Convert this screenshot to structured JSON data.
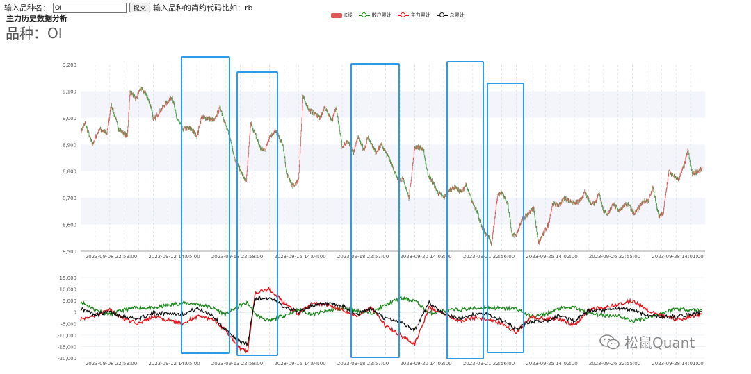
{
  "form": {
    "label": "输入品种名：",
    "input_value": "OI",
    "submit_label": "提交",
    "hint": "输入品种的简约代码比如：rb"
  },
  "header": {
    "section_title": "主力历史数据分析",
    "variety": "品种：OI"
  },
  "legend": [
    {
      "name": "K线",
      "color": "#e05a5a"
    },
    {
      "name": "散户累计",
      "color": "#1a8a1a"
    },
    {
      "name": "主力累计",
      "color": "#e8141a"
    },
    {
      "name": "总累计",
      "color": "#111111"
    }
  ],
  "watermark": "松鼠Quant",
  "chart_data": [
    {
      "type": "candlestick",
      "title": "",
      "y_ticks": [
        "9,200",
        "9,100",
        "9,000",
        "8,900",
        "8,800",
        "8,700",
        "8,600",
        "8,500"
      ],
      "ylim": [
        8500,
        9200
      ],
      "x_tick_labels": [
        "2023-09-08 22:59:00",
        "2023-09-12 14:05:00",
        "2023-09-13 22:58:00",
        "2023-09-15 14:04:00",
        "2023-09-18 22:57:00",
        "2023-09-20 14:03:00",
        "2023-09-21 22:56:00",
        "2023-09-25 14:02:00",
        "2023-09-26 22:55:00",
        "2023-09-28 14:01:00"
      ],
      "close_path": [
        [
          0,
          8950
        ],
        [
          0.3,
          8980
        ],
        [
          0.8,
          8900
        ],
        [
          1.3,
          8960
        ],
        [
          1.8,
          8940
        ],
        [
          2.1,
          9050
        ],
        [
          2.6,
          8960
        ],
        [
          3.2,
          8930
        ],
        [
          3.4,
          9100
        ],
        [
          3.8,
          9070
        ],
        [
          4.1,
          9110
        ],
        [
          4.5,
          9090
        ],
        [
          4.9,
          9030
        ],
        [
          5.0,
          8990
        ],
        [
          5.4,
          9020
        ],
        [
          5.8,
          9050
        ],
        [
          6.3,
          9080
        ],
        [
          6.6,
          9000
        ],
        [
          7.0,
          8960
        ],
        [
          7.6,
          8960
        ],
        [
          8.0,
          8930
        ],
        [
          8.3,
          9000
        ],
        [
          8.7,
          9000
        ],
        [
          9.2,
          8990
        ],
        [
          9.6,
          9040
        ],
        [
          10.0,
          8970
        ],
        [
          10.3,
          8920
        ],
        [
          10.6,
          8850
        ],
        [
          11.0,
          8800
        ],
        [
          11.4,
          8760
        ],
        [
          11.7,
          8980
        ],
        [
          12.0,
          8940
        ],
        [
          12.4,
          8880
        ],
        [
          12.7,
          8880
        ],
        [
          13.0,
          8930
        ],
        [
          13.4,
          8950
        ],
        [
          13.9,
          8900
        ],
        [
          14.2,
          8790
        ],
        [
          14.6,
          8740
        ],
        [
          15.0,
          8770
        ],
        [
          15.3,
          9080
        ],
        [
          15.7,
          9030
        ],
        [
          16.0,
          9020
        ],
        [
          16.5,
          9000
        ],
        [
          16.8,
          9040
        ],
        [
          17.3,
          8990
        ],
        [
          17.6,
          9040
        ],
        [
          18.0,
          8890
        ],
        [
          18.4,
          8910
        ],
        [
          18.8,
          8870
        ],
        [
          19.1,
          8930
        ],
        [
          19.5,
          8880
        ],
        [
          19.8,
          8930
        ],
        [
          20.3,
          8870
        ],
        [
          20.7,
          8900
        ],
        [
          21.0,
          8870
        ],
        [
          21.4,
          8830
        ],
        [
          21.8,
          8770
        ],
        [
          22.2,
          8770
        ],
        [
          22.6,
          8700
        ],
        [
          23.0,
          8890
        ],
        [
          23.3,
          8890
        ],
        [
          23.6,
          8880
        ],
        [
          23.9,
          8790
        ],
        [
          24.2,
          8760
        ],
        [
          24.6,
          8720
        ],
        [
          25.0,
          8700
        ],
        [
          25.4,
          8730
        ],
        [
          25.8,
          8740
        ],
        [
          26.2,
          8720
        ],
        [
          26.5,
          8750
        ],
        [
          27.0,
          8680
        ],
        [
          27.3,
          8650
        ],
        [
          27.6,
          8590
        ],
        [
          28.0,
          8560
        ],
        [
          28.3,
          8530
        ],
        [
          28.7,
          8710
        ],
        [
          29.0,
          8720
        ],
        [
          29.4,
          8680
        ],
        [
          29.7,
          8560
        ],
        [
          30.0,
          8560
        ],
        [
          30.4,
          8620
        ],
        [
          30.8,
          8640
        ],
        [
          31.2,
          8660
        ],
        [
          31.5,
          8530
        ],
        [
          31.8,
          8560
        ],
        [
          32.2,
          8600
        ],
        [
          32.5,
          8680
        ],
        [
          32.9,
          8670
        ],
        [
          33.3,
          8700
        ],
        [
          33.6,
          8690
        ],
        [
          34.0,
          8680
        ],
        [
          34.4,
          8690
        ],
        [
          34.7,
          8720
        ],
        [
          35.1,
          8680
        ],
        [
          35.4,
          8680
        ],
        [
          35.7,
          8720
        ],
        [
          36.0,
          8650
        ],
        [
          36.3,
          8640
        ],
        [
          36.7,
          8680
        ],
        [
          37.0,
          8650
        ],
        [
          37.4,
          8670
        ],
        [
          37.7,
          8680
        ],
        [
          38.1,
          8640
        ],
        [
          38.4,
          8660
        ],
        [
          38.8,
          8690
        ],
        [
          39.1,
          8690
        ],
        [
          39.4,
          8740
        ],
        [
          39.8,
          8630
        ],
        [
          40.1,
          8640
        ],
        [
          40.5,
          8800
        ],
        [
          40.8,
          8780
        ],
        [
          41.2,
          8770
        ],
        [
          41.6,
          8830
        ],
        [
          41.8,
          8880
        ],
        [
          42.1,
          8790
        ],
        [
          42.5,
          8800
        ],
        [
          42.8,
          8810
        ]
      ]
    },
    {
      "type": "line",
      "title": "",
      "y_ticks": [
        "15,000",
        "10,000",
        "5,000",
        "0",
        "-5,000",
        "-10,000",
        "-15,000",
        "-20,000"
      ],
      "ylim": [
        -20000,
        15000
      ],
      "x_tick_labels": [
        "2023-09-08 22:59:00",
        "2023-09-12 14:05:00",
        "2023-09-13 22:58:00",
        "2023-09-15 14:04:00",
        "2023-09-18 22:57:00",
        "2023-09-20 14:03:00",
        "2023-09-21 22:56:00",
        "2023-09-25 14:02:00",
        "2023-09-26 22:55:00",
        "2023-09-28 14:01:00"
      ],
      "series": [
        {
          "name": "散户累计",
          "color": "#1a8a1a",
          "values": [
            [
              0,
              4500
            ],
            [
              1,
              1000
            ],
            [
              2,
              -1000
            ],
            [
              3,
              1000
            ],
            [
              4,
              2000
            ],
            [
              5,
              1500
            ],
            [
              6,
              3000
            ],
            [
              7,
              4000
            ],
            [
              8,
              3500
            ],
            [
              9,
              2000
            ],
            [
              10,
              -1000
            ],
            [
              11,
              3000
            ],
            [
              11.5,
              4000
            ],
            [
              12,
              -1000
            ],
            [
              13,
              -4000
            ],
            [
              14,
              -1500
            ],
            [
              15,
              1000
            ],
            [
              16,
              -1000
            ],
            [
              17,
              500
            ],
            [
              18,
              1500
            ],
            [
              19,
              500
            ],
            [
              20,
              -500
            ],
            [
              21,
              3000
            ],
            [
              22,
              6000
            ],
            [
              23,
              5000
            ],
            [
              24,
              -500
            ],
            [
              25,
              500
            ],
            [
              26,
              1000
            ],
            [
              27,
              1500
            ],
            [
              28,
              2000
            ],
            [
              29,
              1500
            ],
            [
              30,
              1500
            ],
            [
              31,
              -2000
            ],
            [
              32,
              -1000
            ],
            [
              33,
              1500
            ],
            [
              34,
              2000
            ],
            [
              35,
              -500
            ],
            [
              36,
              -1500
            ],
            [
              37,
              -1500
            ],
            [
              38,
              -4000
            ],
            [
              39,
              -2500
            ],
            [
              40,
              -500
            ],
            [
              41,
              1500
            ],
            [
              42,
              1000
            ],
            [
              42.8,
              800
            ]
          ]
        },
        {
          "name": "主力累计",
          "color": "#e8141a",
          "values": [
            [
              0,
              -3000
            ],
            [
              1,
              -1500
            ],
            [
              2,
              1000
            ],
            [
              3,
              -3000
            ],
            [
              4,
              -5000
            ],
            [
              5,
              -2000
            ],
            [
              6,
              -3500
            ],
            [
              7,
              -5000
            ],
            [
              8,
              -2000
            ],
            [
              9,
              -3000
            ],
            [
              10,
              -8000
            ],
            [
              11,
              -16000
            ],
            [
              11.5,
              -17000
            ],
            [
              12,
              8000
            ],
            [
              13,
              10000
            ],
            [
              14,
              4000
            ],
            [
              15,
              -1000
            ],
            [
              16,
              4000
            ],
            [
              17,
              3000
            ],
            [
              18,
              1000
            ],
            [
              19,
              -1500
            ],
            [
              20,
              2000
            ],
            [
              21,
              -6000
            ],
            [
              22,
              -10000
            ],
            [
              23,
              -14000
            ],
            [
              24,
              2000
            ],
            [
              25,
              -1000
            ],
            [
              26,
              -4000
            ],
            [
              27,
              -2500
            ],
            [
              28,
              -3000
            ],
            [
              29,
              -5000
            ],
            [
              30,
              -9000
            ],
            [
              31,
              -2000
            ],
            [
              32,
              -3000
            ],
            [
              33,
              -3000
            ],
            [
              34,
              -6000
            ],
            [
              35,
              1000
            ],
            [
              36,
              2000
            ],
            [
              37,
              3000
            ],
            [
              38,
              5000
            ],
            [
              39,
              1000
            ],
            [
              40,
              -1500
            ],
            [
              41,
              -3500
            ],
            [
              42,
              -2000
            ],
            [
              42.8,
              -1000
            ]
          ]
        },
        {
          "name": "总累计",
          "color": "#111111",
          "values": [
            [
              0,
              1500
            ],
            [
              1,
              -1000
            ],
            [
              2,
              0
            ],
            [
              3,
              -2000
            ],
            [
              4,
              -3000
            ],
            [
              5,
              -500
            ],
            [
              6,
              -500
            ],
            [
              7,
              -1000
            ],
            [
              8,
              1500
            ],
            [
              9,
              -1000
            ],
            [
              10,
              -8000
            ],
            [
              11,
              -13000
            ],
            [
              11.5,
              -14000
            ],
            [
              12,
              6000
            ],
            [
              13,
              6000
            ],
            [
              14,
              2500
            ],
            [
              15,
              0
            ],
            [
              16,
              3000
            ],
            [
              17,
              3500
            ],
            [
              18,
              2500
            ],
            [
              19,
              -1000
            ],
            [
              20,
              1500
            ],
            [
              21,
              -3000
            ],
            [
              22,
              -4000
            ],
            [
              23,
              -8000
            ],
            [
              24,
              4000
            ],
            [
              25,
              -500
            ],
            [
              26,
              -3000
            ],
            [
              27,
              -1000
            ],
            [
              28,
              -1000
            ],
            [
              29,
              -3500
            ],
            [
              30,
              -7500
            ],
            [
              31,
              -4000
            ],
            [
              32,
              -4000
            ],
            [
              33,
              -1500
            ],
            [
              34,
              -4000
            ],
            [
              35,
              500
            ],
            [
              36,
              500
            ],
            [
              37,
              1500
            ],
            [
              38,
              1000
            ],
            [
              39,
              -1500
            ],
            [
              40,
              -2000
            ],
            [
              41,
              -2000
            ],
            [
              42,
              -1000
            ],
            [
              42.8,
              0
            ]
          ]
        }
      ]
    }
  ],
  "annotations": [
    {
      "shape": "rectangle",
      "color": "#2e9be6",
      "x_range": [
        9.5,
        13.0
      ]
    },
    {
      "shape": "rectangle",
      "color": "#2e9be6",
      "x_range": [
        10.8,
        13.6
      ]
    },
    {
      "shape": "rectangle",
      "color": "#2e9be6",
      "x_range": [
        18.3,
        21.7
      ]
    },
    {
      "shape": "rectangle",
      "color": "#2e9be6",
      "x_range": [
        25.0,
        27.4
      ]
    },
    {
      "shape": "rectangle",
      "color": "#2e9be6",
      "x_range": [
        27.6,
        30.1
      ]
    }
  ]
}
